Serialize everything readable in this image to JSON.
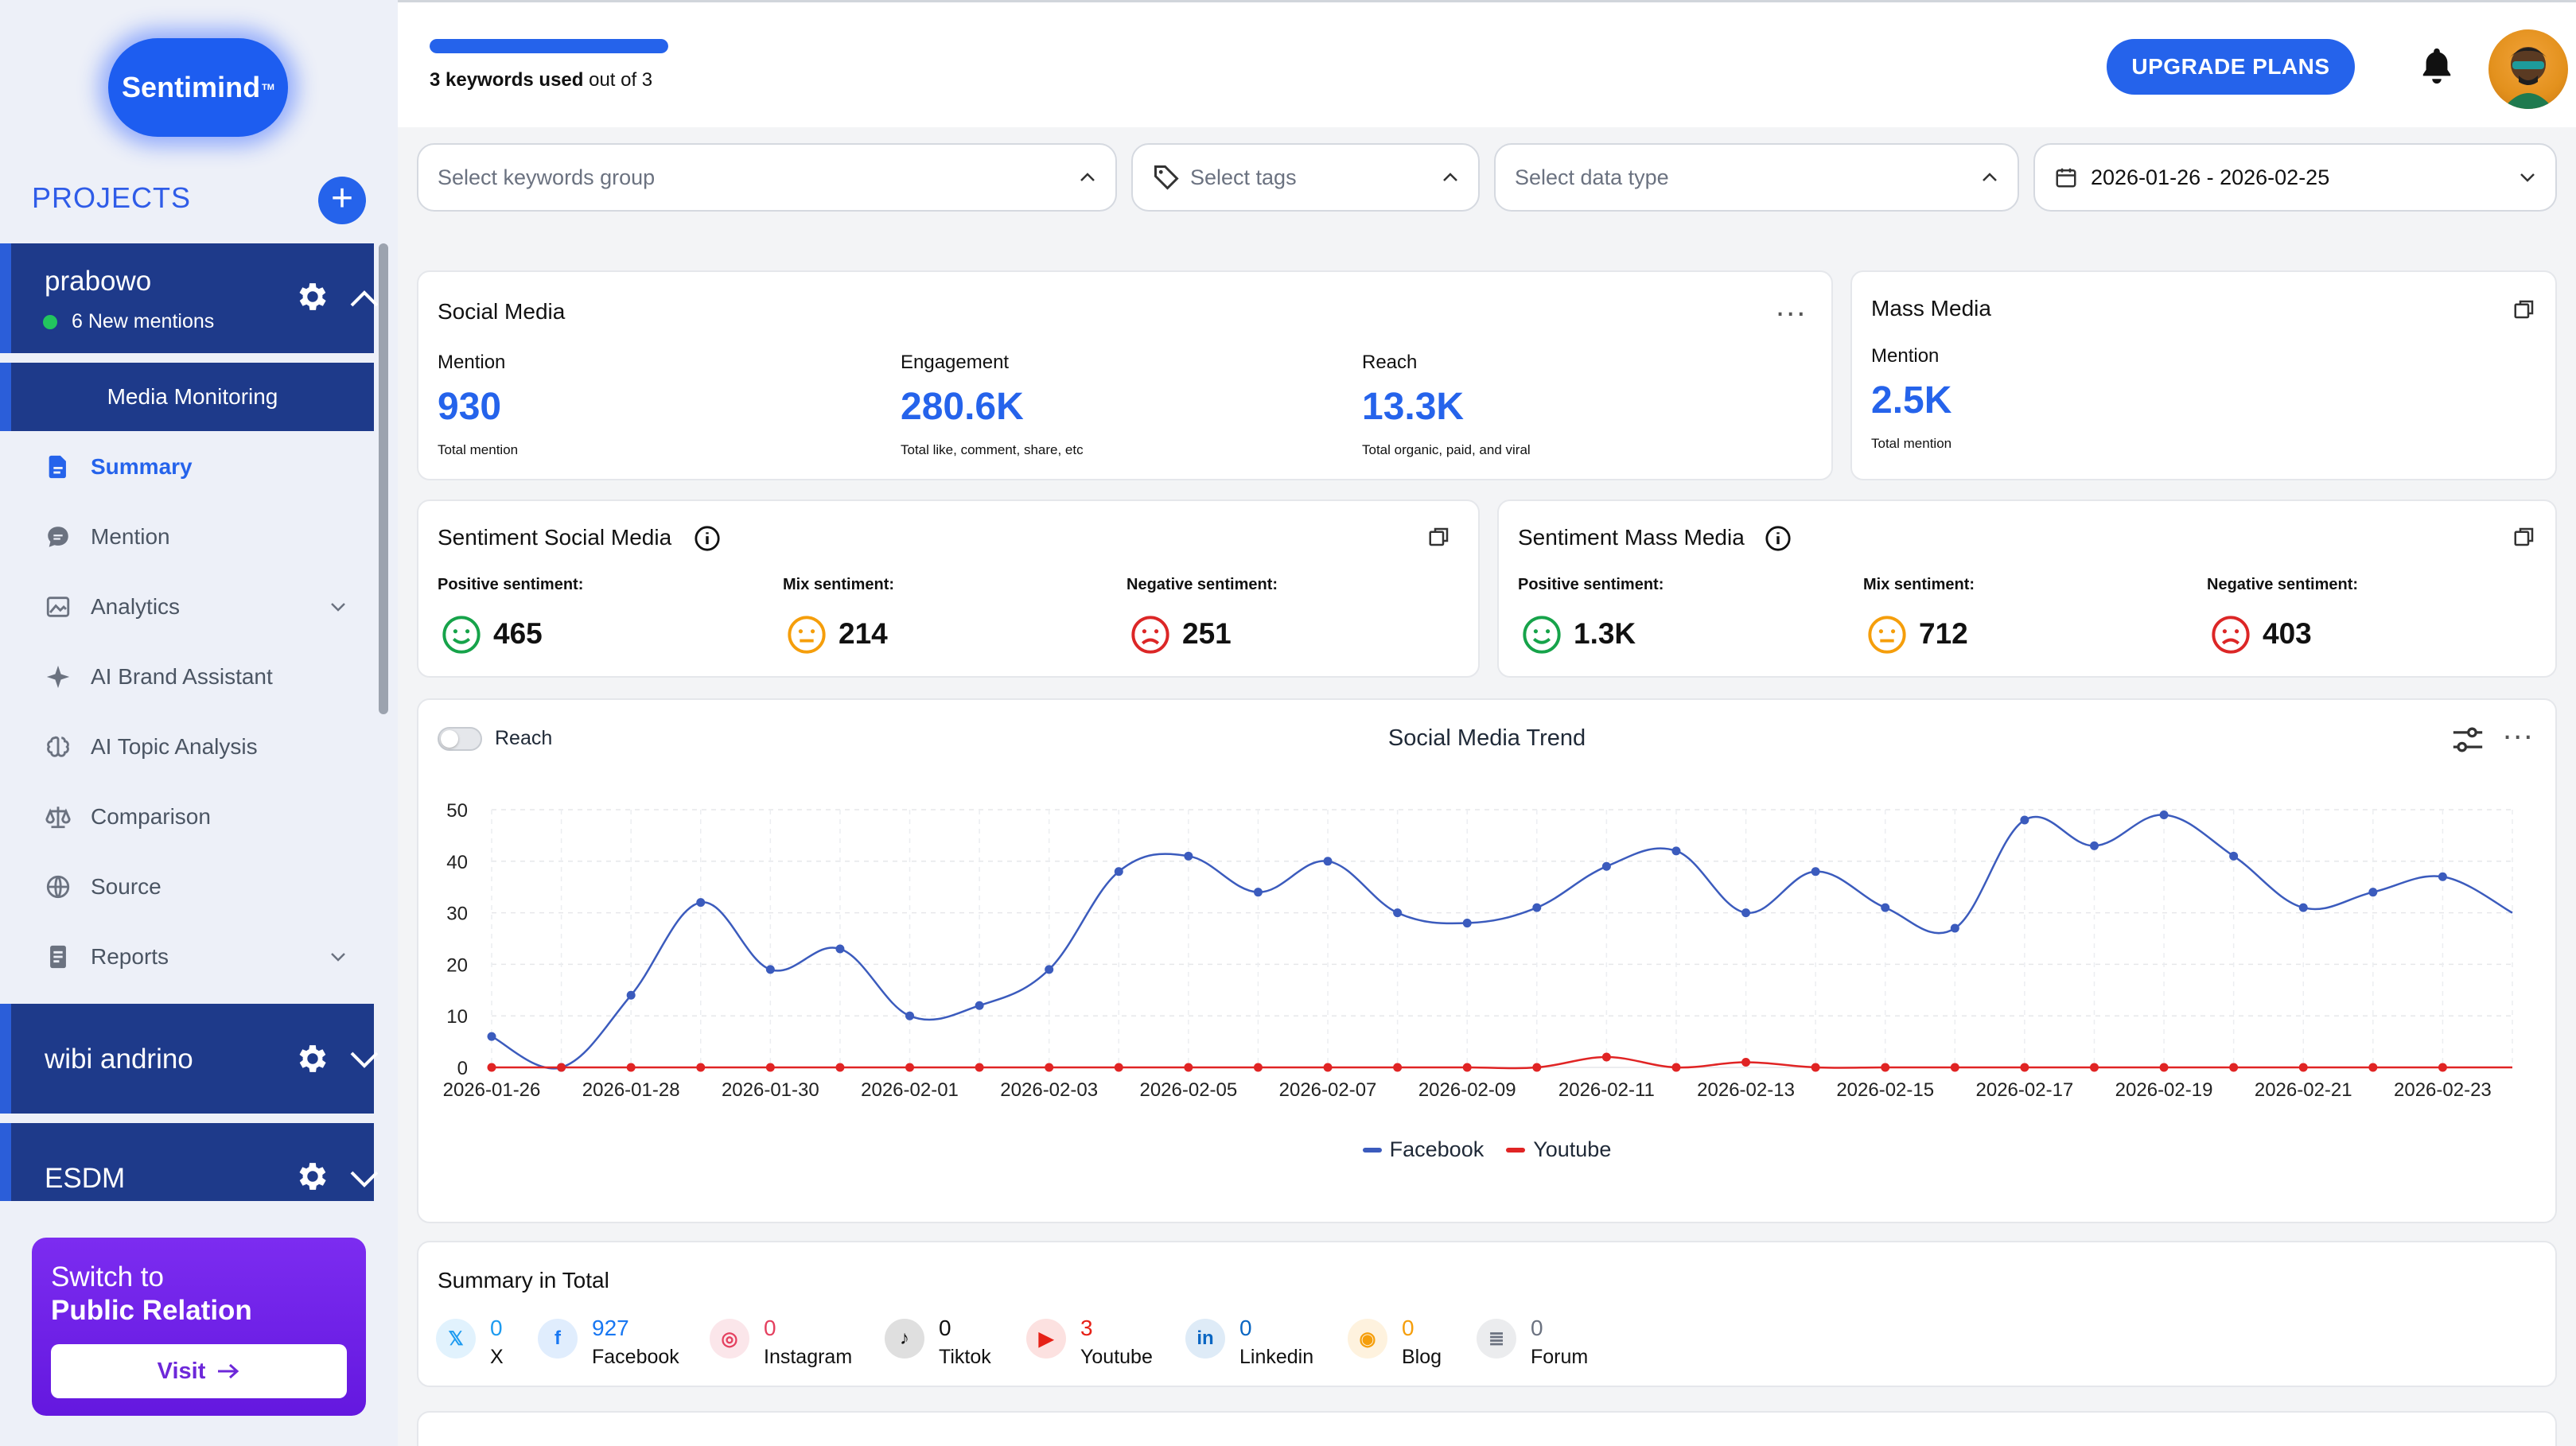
{
  "app": {
    "logo_text": "Sentimind",
    "logo_tm": "TM"
  },
  "sidebar": {
    "projects_title": "PROJECTS",
    "projects": [
      {
        "name": "prabowo",
        "mentions": "6 New mentions"
      },
      {
        "name": "wibi andrino"
      },
      {
        "name": "ESDM"
      }
    ],
    "media_monitoring": "Media Monitoring",
    "nav": [
      "Summary",
      "Mention",
      "Analytics",
      "AI Brand Assistant",
      "AI Topic Analysis",
      "Comparison",
      "Source",
      "Reports"
    ],
    "switch_line1": "Switch to",
    "switch_line2": "Public Relation",
    "visit": "Visit"
  },
  "topbar": {
    "keyword_usage_fraction": 1.0,
    "keywords_used_bold": "3 keywords used",
    "keywords_used_rest": " out of 3",
    "upgrade_label": "UPGRADE PLANS"
  },
  "filters": {
    "keywords_group_placeholder": "Select keywords group",
    "tags_placeholder": "Select tags",
    "data_type_placeholder": "Select data type",
    "date_range": "2026-01-26 - 2026-02-25"
  },
  "social_media": {
    "title": "Social Media",
    "mention_label": "Mention",
    "mention_value": "930",
    "mention_sub": "Total mention",
    "engagement_label": "Engagement",
    "engagement_value": "280.6K",
    "engagement_sub": "Total like, comment, share, etc",
    "reach_label": "Reach",
    "reach_value": "13.3K",
    "reach_sub": "Total organic, paid, and viral"
  },
  "mass_media": {
    "title": "Mass Media",
    "mention_label": "Mention",
    "mention_value": "2.5K",
    "mention_sub": "Total mention"
  },
  "sentiment_social": {
    "title": "Sentiment Social Media",
    "positive_label": "Positive sentiment:",
    "positive_value": "465",
    "mix_label": "Mix sentiment:",
    "mix_value": "214",
    "negative_label": "Negative sentiment:",
    "negative_value": "251"
  },
  "sentiment_mass": {
    "title": "Sentiment Mass Media",
    "positive_label": "Positive sentiment:",
    "positive_value": "1.3K",
    "mix_label": "Mix sentiment:",
    "mix_value": "712",
    "negative_label": "Negative sentiment:",
    "negative_value": "403"
  },
  "trend": {
    "title": "Social Media Trend",
    "toggle_label": "Reach"
  },
  "chart_data": {
    "type": "line",
    "title": "Social Media Trend",
    "ylim": [
      0,
      50
    ],
    "yticks": [
      0,
      10,
      20,
      30,
      40,
      50
    ],
    "x": [
      "2026-01-26",
      "2026-01-27",
      "2026-01-28",
      "2026-01-29",
      "2026-01-30",
      "2026-01-31",
      "2026-02-01",
      "2026-02-02",
      "2026-02-03",
      "2026-02-04",
      "2026-02-05",
      "2026-02-06",
      "2026-02-07",
      "2026-02-08",
      "2026-02-09",
      "2026-02-10",
      "2026-02-11",
      "2026-02-12",
      "2026-02-13",
      "2026-02-14",
      "2026-02-15",
      "2026-02-16",
      "2026-02-17",
      "2026-02-18",
      "2026-02-19",
      "2026-02-20",
      "2026-02-21",
      "2026-02-22",
      "2026-02-23",
      "2026-02-24"
    ],
    "xtick_labels": [
      "2026-01-26",
      "2026-01-28",
      "2026-01-30",
      "2026-02-01",
      "2026-02-03",
      "2026-02-05",
      "2026-02-07",
      "2026-02-09",
      "2026-02-11",
      "2026-02-13",
      "2026-02-15",
      "2026-02-17",
      "2026-02-19",
      "2026-02-21",
      "2026-02-23"
    ],
    "series": [
      {
        "name": "Facebook",
        "color": "#3b5bbd",
        "values": [
          6,
          0,
          14,
          32,
          19,
          23,
          10,
          12,
          19,
          38,
          41,
          34,
          40,
          30,
          28,
          31,
          39,
          42,
          30,
          38,
          31,
          27,
          48,
          43,
          49,
          41,
          31,
          34,
          37,
          30
        ]
      },
      {
        "name": "Youtube",
        "color": "#e02424",
        "values": [
          0,
          0,
          0,
          0,
          0,
          0,
          0,
          0,
          0,
          0,
          0,
          0,
          0,
          0,
          0,
          0,
          2,
          0,
          1,
          0,
          0,
          0,
          0,
          0,
          0,
          0,
          0,
          0,
          0,
          0
        ]
      }
    ],
    "grid": true,
    "legend": "bottom-center"
  },
  "summary_total": {
    "title": "Summary in Total",
    "items": [
      {
        "name": "X",
        "value": "0",
        "color": "#1d9bf0"
      },
      {
        "name": "Facebook",
        "value": "927",
        "color": "#1877f2"
      },
      {
        "name": "Instagram",
        "value": "0",
        "color": "#e4405f"
      },
      {
        "name": "Tiktok",
        "value": "0",
        "color": "#111111"
      },
      {
        "name": "Youtube",
        "value": "3",
        "color": "#e62117"
      },
      {
        "name": "Linkedin",
        "value": "0",
        "color": "#0a66c2"
      },
      {
        "name": "Blog",
        "value": "0",
        "color": "#f59e0b"
      },
      {
        "name": "Forum",
        "value": "0",
        "color": "#6b7280"
      }
    ]
  }
}
